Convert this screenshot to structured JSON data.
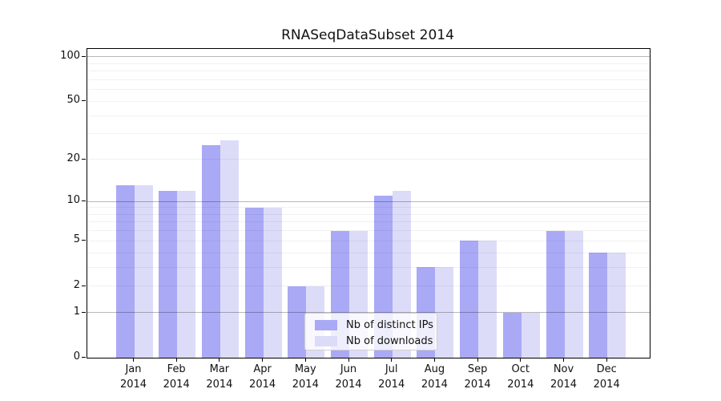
{
  "chart_data": {
    "type": "bar",
    "title": "RNASeqDataSubset 2014",
    "categories": [
      "Jan",
      "Feb",
      "Mar",
      "Apr",
      "May",
      "Jun",
      "Jul",
      "Aug",
      "Sep",
      "Oct",
      "Nov",
      "Dec"
    ],
    "x_sublabel": "2014",
    "series": [
      {
        "name": "Nb of distinct IPs",
        "color": "#a9a9f6",
        "values": [
          13,
          12,
          25,
          9,
          2,
          6,
          11,
          3,
          5,
          1,
          6,
          4
        ]
      },
      {
        "name": "Nb of downloads",
        "color": "#dcdcf9",
        "values": [
          13,
          12,
          27,
          9,
          2,
          6,
          12,
          3,
          5,
          1,
          6,
          4
        ]
      }
    ],
    "yscale": "log10(1+y)",
    "ylim": [
      0,
      113
    ],
    "yticks": [
      0,
      1,
      2,
      5,
      10,
      20,
      50,
      100
    ],
    "major_gridlines": [
      1,
      10,
      100
    ],
    "minor_gridlines": [
      2,
      3,
      4,
      5,
      6,
      7,
      8,
      9,
      20,
      30,
      40,
      50,
      60,
      70,
      80,
      90
    ],
    "legend": {
      "position": "lower-center"
    },
    "grid": "on"
  },
  "colors": {
    "distinct_ips_bar": "#a9a9f6",
    "downloads_bar": "#dcdcf9",
    "major_grid": "#b8b8b8",
    "minor_grid": "#f1f1f1",
    "text": "#111111",
    "spine": "#000000"
  }
}
